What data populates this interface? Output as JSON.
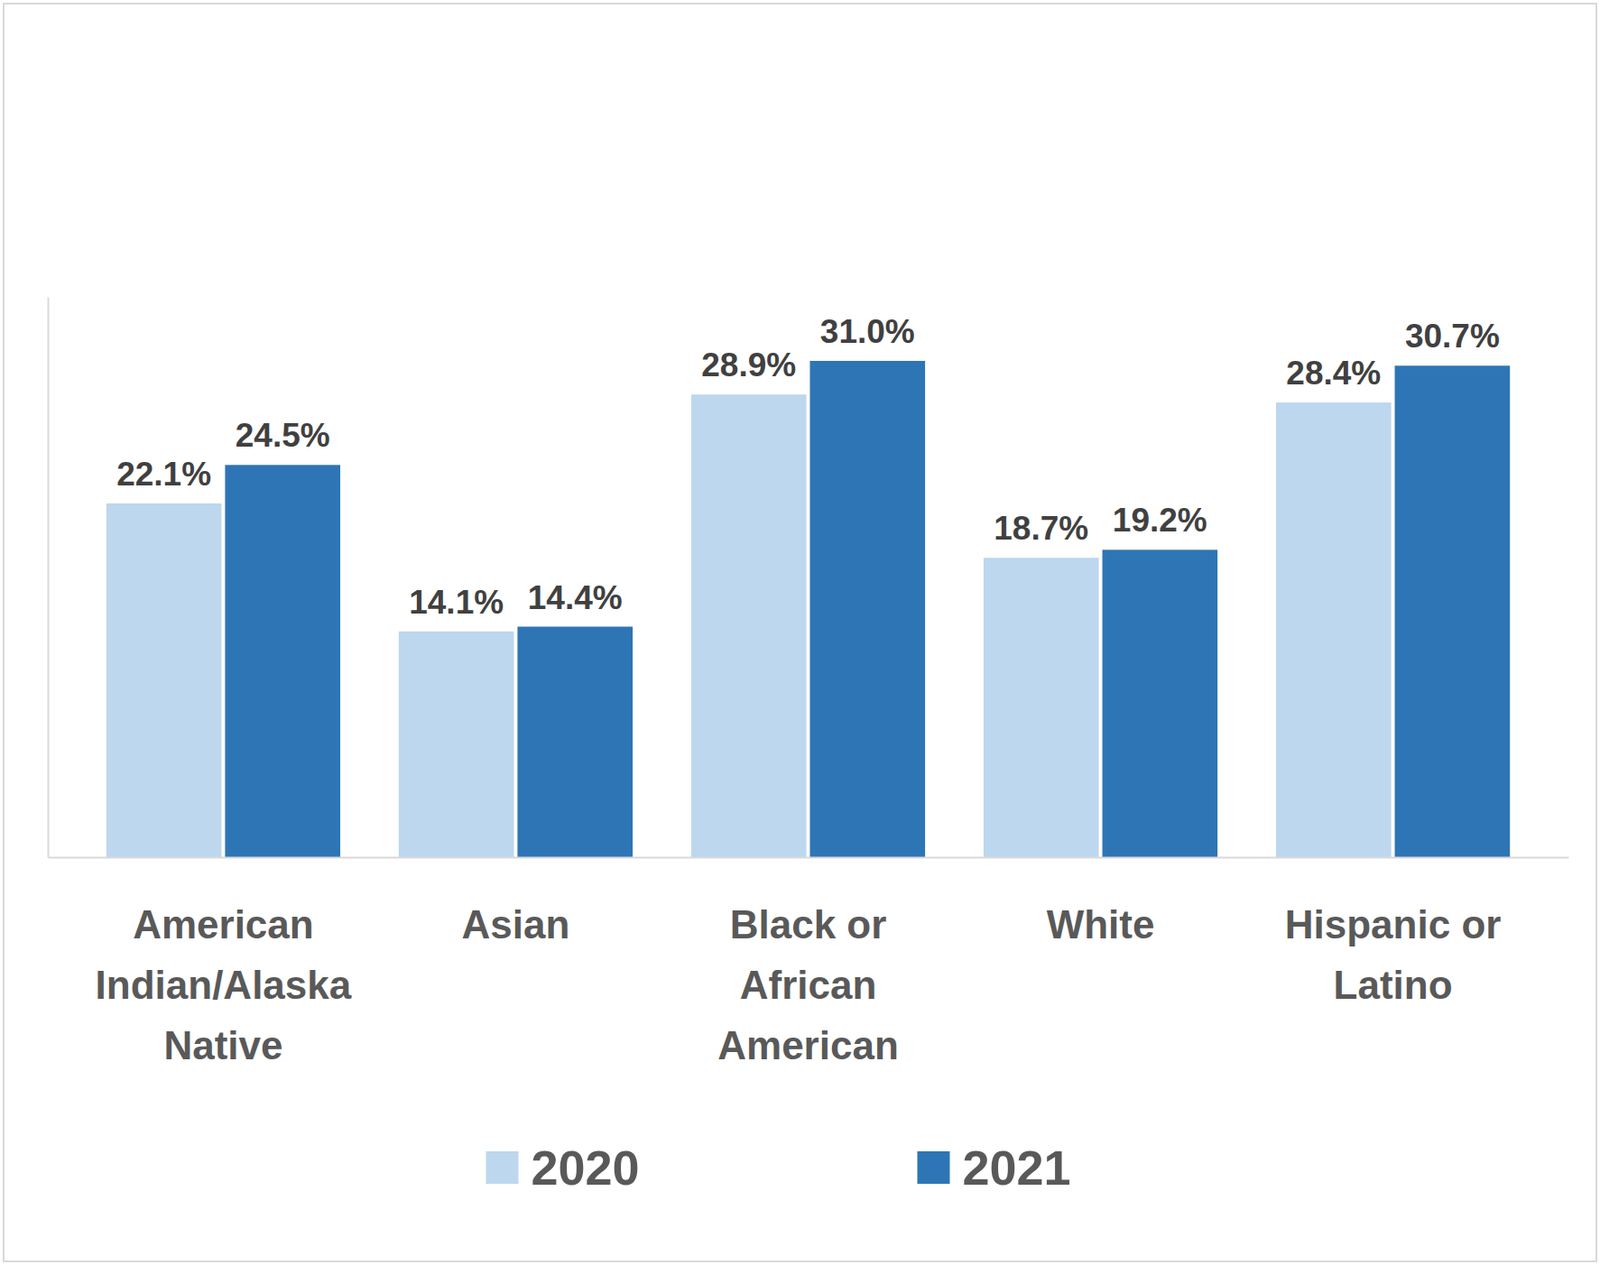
{
  "chart_data": {
    "type": "bar",
    "categories": [
      "American Indian/Alaska Native",
      "Asian",
      "Black or African American",
      "White",
      "Hispanic or Latino"
    ],
    "series": [
      {
        "name": "2020",
        "color": "#bdd7ee",
        "values": [
          22.1,
          14.1,
          28.9,
          18.7,
          28.4
        ],
        "value_labels": [
          "22.1%",
          "14.1%",
          "28.9%",
          "18.7%",
          "28.4%"
        ]
      },
      {
        "name": "2021",
        "color": "#2e75b6",
        "values": [
          24.5,
          14.4,
          31.0,
          19.2,
          30.7
        ],
        "value_labels": [
          "24.5%",
          "14.4%",
          "31.0%",
          "19.2%",
          "30.7%"
        ]
      }
    ],
    "ylim": [
      0,
      35
    ],
    "yticks": [],
    "tick_labels": "x",
    "data_labels": true,
    "legend": "bottom"
  }
}
